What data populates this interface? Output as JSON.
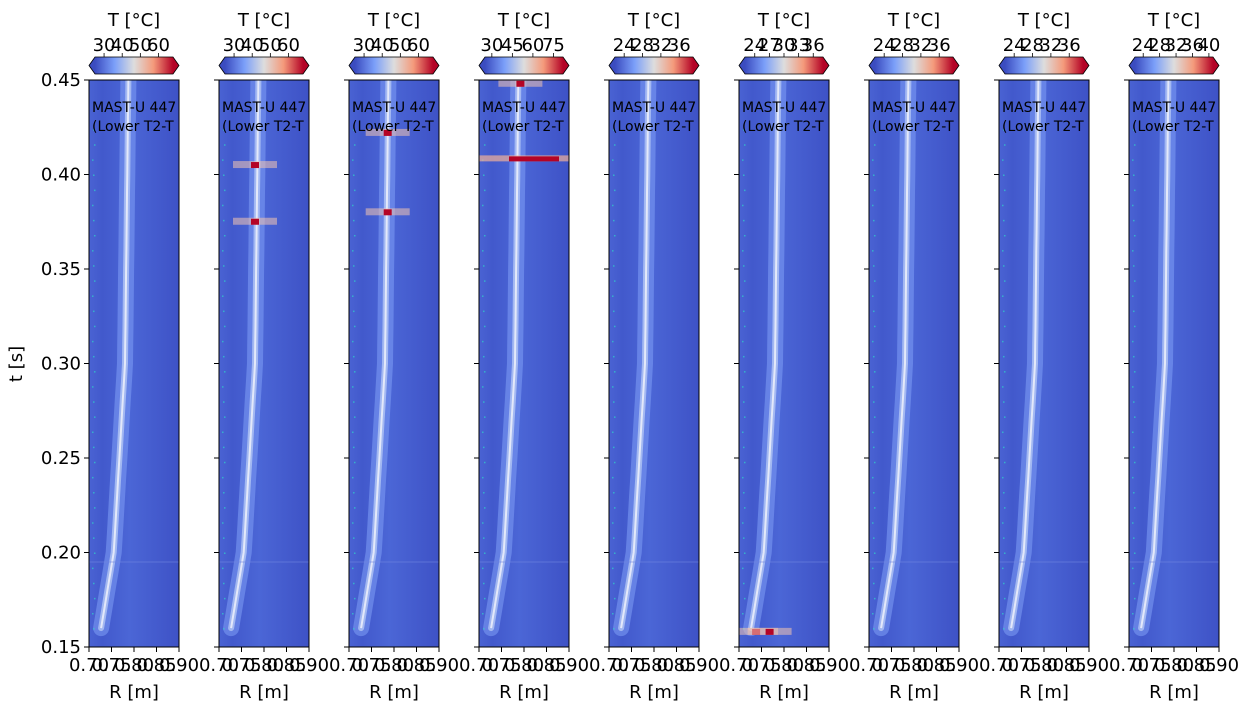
{
  "chart_data": {
    "type": "heatmap",
    "ylabel": "t [s]",
    "xlabel": "R [m]",
    "ylim": [
      0.15,
      0.45
    ],
    "yticks": [
      "0.15",
      "0.20",
      "0.25",
      "0.30",
      "0.35",
      "0.40",
      "0.45"
    ],
    "xlim": [
      0.7,
      0.9
    ],
    "xticks": [
      "0.70",
      "0.75",
      "0.80",
      "0.85",
      "0.90"
    ],
    "colormap": "coolwarm",
    "colors": {
      "cold": "#3b4cc0",
      "mid": "#dddddd",
      "hot": "#b40426"
    },
    "colorbar_label": "T [°C]",
    "panels": [
      {
        "annotation": [
          "MAST-U 447",
          "(Lower T2-T"
        ],
        "cbar_ticks": [
          "30",
          "40",
          "50",
          "60"
        ],
        "cbar_range": [
          25,
          68
        ],
        "hotspots": []
      },
      {
        "annotation": [
          "MAST-U 447",
          "(Lower T2-T"
        ],
        "cbar_ticks": [
          "30",
          "40",
          "50",
          "60"
        ],
        "cbar_range": [
          25,
          68
        ],
        "hotspots": [
          {
            "r": 0.78,
            "t": 0.405
          },
          {
            "r": 0.78,
            "t": 0.375
          }
        ]
      },
      {
        "annotation": [
          "MAST-U 447",
          "(Lower T2-T"
        ],
        "cbar_ticks": [
          "30",
          "40",
          "50",
          "60"
        ],
        "cbar_range": [
          25,
          68
        ],
        "hotspots": [
          {
            "r": 0.786,
            "t": 0.422
          },
          {
            "r": 0.786,
            "t": 0.38
          }
        ]
      },
      {
        "annotation": [
          "MAST-U 447",
          "(Lower T2-T"
        ],
        "cbar_ticks": [
          "30",
          "45",
          "60",
          "75"
        ],
        "cbar_range": [
          25,
          82
        ],
        "hotspots": [
          {
            "r": 0.792,
            "t": 0.448
          },
          {
            "r": 0.792,
            "t": 0.408
          }
        ]
      },
      {
        "annotation": [
          "MAST-U 447",
          "(Lower T2-T"
        ],
        "cbar_ticks": [
          "24",
          "28",
          "32",
          "36"
        ],
        "cbar_range": [
          22,
          39
        ],
        "hotspots": []
      },
      {
        "annotation": [
          "MAST-U 447",
          "(Lower T2-T"
        ],
        "cbar_ticks": [
          "24",
          "27",
          "30",
          "33",
          "36"
        ],
        "cbar_range": [
          22,
          38
        ],
        "hotspots": [
          {
            "r": 0.738,
            "t": 0.158
          },
          {
            "r": 0.768,
            "t": 0.158
          }
        ]
      },
      {
        "annotation": [
          "MAST-U 447",
          "(Lower T2-T"
        ],
        "cbar_ticks": [
          "24",
          "28",
          "32",
          "36"
        ],
        "cbar_range": [
          22,
          39
        ],
        "hotspots": []
      },
      {
        "annotation": [
          "MAST-U 447",
          "(Lower T2-T"
        ],
        "cbar_ticks": [
          "24",
          "28",
          "32",
          "36"
        ],
        "cbar_range": [
          22,
          39
        ],
        "hotspots": []
      },
      {
        "annotation": [
          "MAST-U 447",
          "(Lower T2-T"
        ],
        "cbar_ticks": [
          "24",
          "28",
          "32",
          "36",
          "40"
        ],
        "cbar_range": [
          22,
          41
        ],
        "hotspots": []
      }
    ]
  }
}
